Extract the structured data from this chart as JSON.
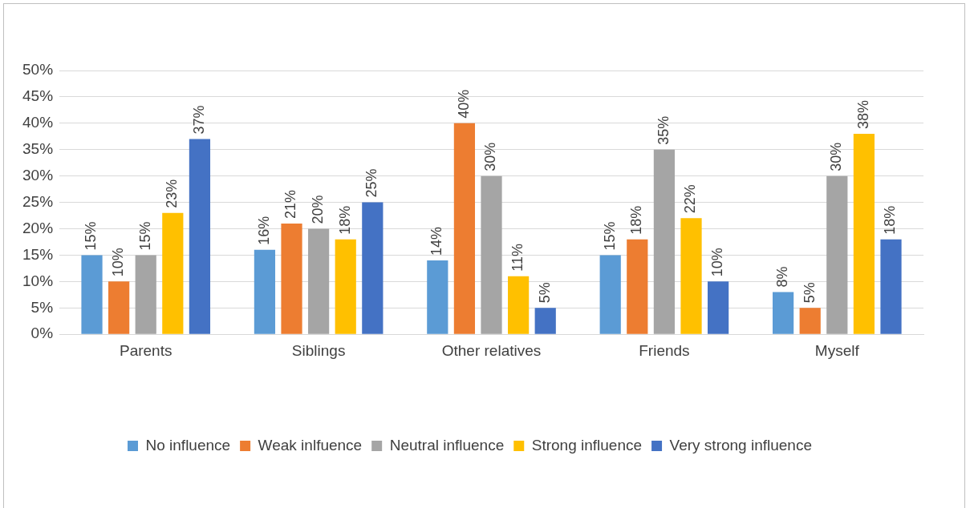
{
  "chart_data": {
    "type": "bar",
    "categories": [
      "Parents",
      "Siblings",
      "Other relatives",
      "Friends",
      "Myself"
    ],
    "series": [
      {
        "name": "No influence",
        "color": "#5b9bd5",
        "values": [
          15,
          16,
          14,
          15,
          8
        ],
        "value_labels": [
          "15%",
          "16%",
          "14%",
          "15%",
          "8%"
        ]
      },
      {
        "name": "Weak inlfuence",
        "color": "#ed7d31",
        "values": [
          10,
          21,
          40,
          18,
          5
        ],
        "value_labels": [
          "10%",
          "21%",
          "40%",
          "18%",
          "5%"
        ]
      },
      {
        "name": "Neutral influence",
        "color": "#a5a5a5",
        "values": [
          15,
          20,
          30,
          35,
          30
        ],
        "value_labels": [
          "15%",
          "20%",
          "30%",
          "35%",
          "30%"
        ]
      },
      {
        "name": "Strong influence",
        "color": "#ffc000",
        "values": [
          23,
          18,
          11,
          22,
          38
        ],
        "value_labels": [
          "23%",
          "18%",
          "11%",
          "22%",
          "38%"
        ]
      },
      {
        "name": "Very strong influence",
        "color": "#4472c4",
        "values": [
          37,
          25,
          5,
          10,
          18
        ],
        "value_labels": [
          "37%",
          "25%",
          "5%",
          "10%",
          "18%"
        ]
      }
    ],
    "ylim": [
      0,
      50
    ],
    "yticks": [
      {
        "value": 0,
        "label": "0%"
      },
      {
        "value": 5,
        "label": "5%"
      },
      {
        "value": 10,
        "label": "10%"
      },
      {
        "value": 15,
        "label": "15%"
      },
      {
        "value": 20,
        "label": "20%"
      },
      {
        "value": 25,
        "label": "25%"
      },
      {
        "value": 30,
        "label": "30%"
      },
      {
        "value": 35,
        "label": "35%"
      },
      {
        "value": 40,
        "label": "40%"
      },
      {
        "value": 45,
        "label": "45%"
      },
      {
        "value": 50,
        "label": "50%"
      }
    ],
    "grid": "y",
    "legend": "bottom"
  }
}
